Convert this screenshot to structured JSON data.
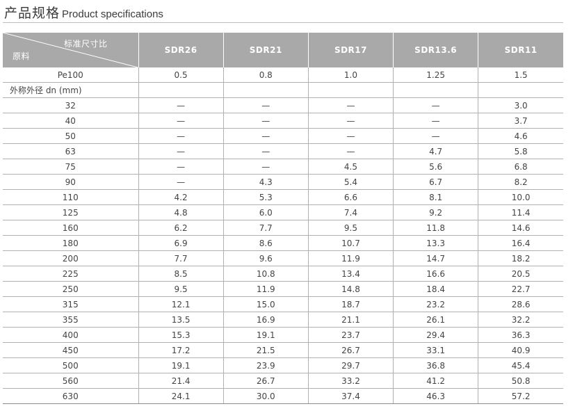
{
  "header": {
    "title_cn": "产品规格",
    "title_en": "Product specifications"
  },
  "table": {
    "corner_top": "标准尺寸比",
    "corner_bottom": "原料",
    "columns": [
      "SDR26",
      "SDR21",
      "SDR17",
      "SDR13.6",
      "SDR11"
    ],
    "material_row": {
      "label": "Pe100",
      "values": [
        "0.5",
        "0.8",
        "1.0",
        "1.25",
        "1.5"
      ]
    },
    "section_label": "外称外径 dn (mm)",
    "rows": [
      {
        "dn": "32",
        "values": [
          "—",
          "—",
          "—",
          "—",
          "3.0"
        ]
      },
      {
        "dn": "40",
        "values": [
          "—",
          "—",
          "—",
          "—",
          "3.7"
        ]
      },
      {
        "dn": "50",
        "values": [
          "—",
          "—",
          "—",
          "—",
          "4.6"
        ]
      },
      {
        "dn": "63",
        "values": [
          "—",
          "—",
          "—",
          "4.7",
          "5.8"
        ]
      },
      {
        "dn": "75",
        "values": [
          "—",
          "—",
          "4.5",
          "5.6",
          "6.8"
        ]
      },
      {
        "dn": "90",
        "values": [
          "—",
          "4.3",
          "5.4",
          "6.7",
          "8.2"
        ]
      },
      {
        "dn": "110",
        "values": [
          "4.2",
          "5.3",
          "6.6",
          "8.1",
          "10.0"
        ]
      },
      {
        "dn": "125",
        "values": [
          "4.8",
          "6.0",
          "7.4",
          "9.2",
          "11.4"
        ]
      },
      {
        "dn": "160",
        "values": [
          "6.2",
          "7.7",
          "9.5",
          "11.8",
          "14.6"
        ]
      },
      {
        "dn": "180",
        "values": [
          "6.9",
          "8.6",
          "10.7",
          "13.3",
          "16.4"
        ]
      },
      {
        "dn": "200",
        "values": [
          "7.7",
          "9.6",
          "11.9",
          "14.7",
          "18.2"
        ]
      },
      {
        "dn": "225",
        "values": [
          "8.5",
          "10.8",
          "13.4",
          "16.6",
          "20.5"
        ]
      },
      {
        "dn": "250",
        "values": [
          "9.5",
          "11.9",
          "14.8",
          "18.4",
          "22.7"
        ]
      },
      {
        "dn": "315",
        "values": [
          "12.1",
          "15.0",
          "18.7",
          "23.2",
          "28.6"
        ]
      },
      {
        "dn": "355",
        "values": [
          "13.5",
          "16.9",
          "21.1",
          "26.1",
          "32.2"
        ]
      },
      {
        "dn": "400",
        "values": [
          "15.3",
          "19.1",
          "23.7",
          "29.4",
          "36.3"
        ]
      },
      {
        "dn": "450",
        "values": [
          "17.2",
          "21.5",
          "26.7",
          "33.1",
          "40.9"
        ]
      },
      {
        "dn": "500",
        "values": [
          "19.1",
          "23.9",
          "29.7",
          "36.8",
          "45.4"
        ]
      },
      {
        "dn": "560",
        "values": [
          "21.4",
          "26.7",
          "33.2",
          "41.2",
          "50.8"
        ]
      },
      {
        "dn": "630",
        "values": [
          "24.1",
          "30.0",
          "37.4",
          "46.3",
          "57.2"
        ]
      }
    ]
  }
}
